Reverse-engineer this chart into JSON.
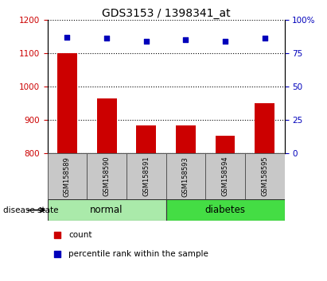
{
  "title": "GDS3153 / 1398341_at",
  "samples": [
    "GSM158589",
    "GSM158590",
    "GSM158591",
    "GSM158593",
    "GSM158594",
    "GSM158595"
  ],
  "counts": [
    1100,
    965,
    882,
    882,
    852,
    950
  ],
  "percentile_ranks": [
    87,
    86,
    84,
    85,
    84,
    86
  ],
  "ylim_left": [
    800,
    1200
  ],
  "ylim_right": [
    0,
    100
  ],
  "yticks_left": [
    800,
    900,
    1000,
    1100,
    1200
  ],
  "yticks_right": [
    0,
    25,
    50,
    75,
    100
  ],
  "groups": [
    {
      "label": "normal",
      "indices": [
        0,
        1,
        2
      ],
      "color": "#AAEAAA"
    },
    {
      "label": "diabetes",
      "indices": [
        3,
        4,
        5
      ],
      "color": "#44DD44"
    }
  ],
  "bar_color": "#CC0000",
  "dot_color": "#0000BB",
  "bar_width": 0.5,
  "grid_color": "black",
  "tick_label_color_left": "#CC0000",
  "tick_label_color_right": "#0000BB",
  "disease_state_label": "disease state",
  "legend_count_label": "count",
  "legend_percentile_label": "percentile rank within the sample",
  "xticklabel_area_color": "#C8C8C8",
  "title_fontsize": 10
}
